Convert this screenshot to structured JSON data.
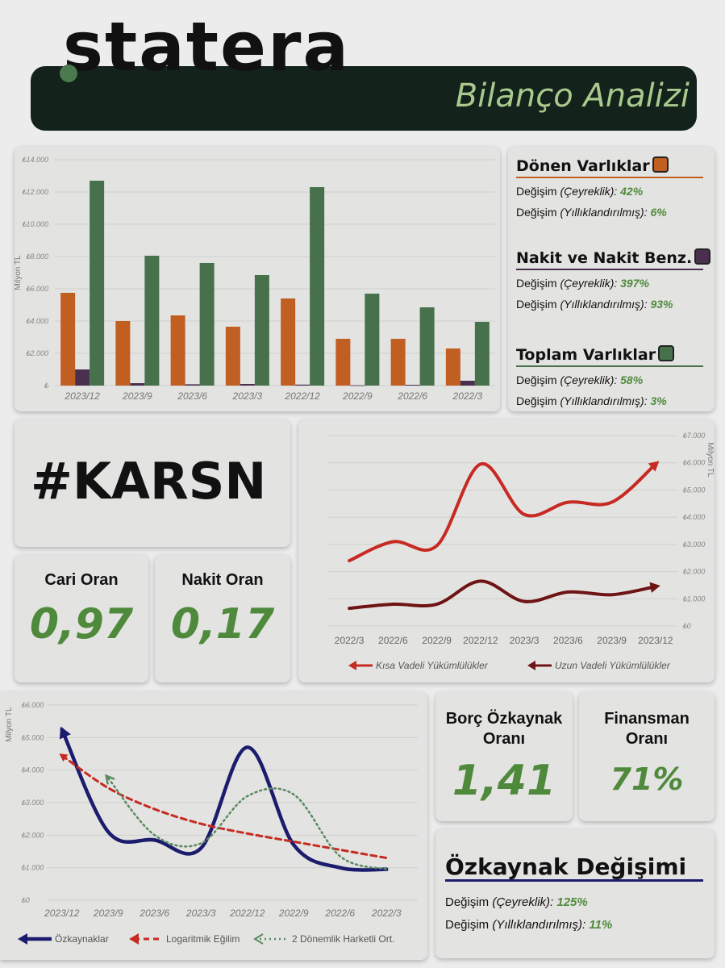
{
  "header": {
    "brand": "statera",
    "title": "Bilanço Analizi"
  },
  "ticker": "#KARSN",
  "assets_legend": {
    "items": [
      {
        "name": "Dönen Varlıklar",
        "color": "#c15f22",
        "q_label": "Değişim",
        "q_note": "(Çeyreklik):",
        "q_value": "42%",
        "a_label": "Değişim",
        "a_note": "(Yıllıklandırılmış):",
        "a_value": "6%"
      },
      {
        "name": "Nakit ve Nakit Benz.",
        "color": "#4a2f4e",
        "q_label": "Değişim",
        "q_note": "(Çeyreklik):",
        "q_value": "397%",
        "a_label": "Değişim",
        "a_note": "(Yıllıklandırılmış):",
        "a_value": "93%"
      },
      {
        "name": "Toplam Varlıklar",
        "color": "#46714b",
        "q_label": "Değişim",
        "q_note": "(Çeyreklik):",
        "q_value": "58%",
        "a_label": "Değişim",
        "a_note": "(Yıllıklandırılmış):",
        "a_value": "3%"
      }
    ]
  },
  "ratios": {
    "cari": {
      "label": "Cari Oran",
      "value": "0,97"
    },
    "nakit": {
      "label": "Nakit Oran",
      "value": "0,17"
    },
    "borc": {
      "label1": "Borç Özkaynak",
      "label2": "Oranı",
      "value": "1,41"
    },
    "finansman": {
      "label1": "Finansman",
      "label2": "Oranı",
      "value": "71%"
    }
  },
  "equity_change": {
    "title": "Özkaynak Değişimi",
    "q_label": "Değişim",
    "q_note": "(Çeyreklik):",
    "q_value": "125%",
    "a_label": "Değişim",
    "a_note": "(Yıllıklandırılmış):",
    "a_value": "11%",
    "color": "#1c1c6e"
  },
  "chart_data": [
    {
      "type": "bar",
      "ylabel": "Milyon TL",
      "ylim": [
        0,
        14000
      ],
      "yticks": [
        "₺",
        "₺2.000",
        "₺4.000",
        "₺6.000",
        "₺8.000",
        "₺10.000",
        "₺12.000",
        "₺14.000"
      ],
      "categories": [
        "2023/12",
        "2023/9",
        "2023/6",
        "2023/3",
        "2022/12",
        "2022/9",
        "2022/6",
        "2022/3"
      ],
      "series": [
        {
          "name": "Dönen Varlıklar",
          "color": "#c15f22",
          "values": [
            5750,
            4000,
            4350,
            3650,
            5400,
            2900,
            2900,
            2300
          ]
        },
        {
          "name": "Nakit ve Nakit Benz.",
          "color": "#4a2f4e",
          "values": [
            1000,
            150,
            80,
            100,
            60,
            20,
            50,
            300
          ]
        },
        {
          "name": "Toplam Varlıklar",
          "color": "#46714b",
          "values": [
            12700,
            8050,
            7600,
            6850,
            12300,
            5700,
            4850,
            3950
          ]
        }
      ]
    },
    {
      "type": "line",
      "ylabel": "Milyon TL",
      "ylim": [
        0,
        7000
      ],
      "yticks": [
        "₺0",
        "₺1.000",
        "₺2.000",
        "₺3.000",
        "₺4.000",
        "₺5.000",
        "₺6.000",
        "₺7.000"
      ],
      "categories": [
        "2022/3",
        "2022/6",
        "2022/9",
        "2022/12",
        "2023/3",
        "2023/6",
        "2023/9",
        "2023/12"
      ],
      "series": [
        {
          "name": "Kısa Vadeli Yükümlülükler",
          "color": "#c62a22",
          "values": [
            2400,
            3100,
            2950,
            5950,
            4100,
            4550,
            4550,
            5950
          ]
        },
        {
          "name": "Uzun Vadeli Yükümlülükler",
          "color": "#6e1414",
          "values": [
            650,
            800,
            800,
            1650,
            900,
            1250,
            1150,
            1450
          ]
        }
      ]
    },
    {
      "type": "line",
      "ylabel": "Milyon TL",
      "ylim": [
        0,
        6000
      ],
      "yticks": [
        "₺0",
        "₺1.000",
        "₺2.000",
        "₺3.000",
        "₺4.000",
        "₺5.000",
        "₺6.000"
      ],
      "categories": [
        "2023/12",
        "2023/9",
        "2023/6",
        "2023/3",
        "2022/12",
        "2022/9",
        "2022/6",
        "2022/3"
      ],
      "series": [
        {
          "name": "Özkaynaklar",
          "color": "#1c1c6e",
          "values": [
            5250,
            2100,
            1850,
            1600,
            4700,
            1700,
            1000,
            950
          ]
        },
        {
          "name": "Logaritmik Eğilim",
          "color": "#c62a22",
          "values": [
            4450,
            3450,
            2800,
            2350,
            2050,
            1800,
            1550,
            1300
          ]
        },
        {
          "name": "2 Dönemlik Harketli Ort.",
          "color": "#5a8a60",
          "values": [
            null,
            3750,
            2000,
            1750,
            3200,
            3250,
            1350,
            950
          ]
        }
      ]
    }
  ]
}
